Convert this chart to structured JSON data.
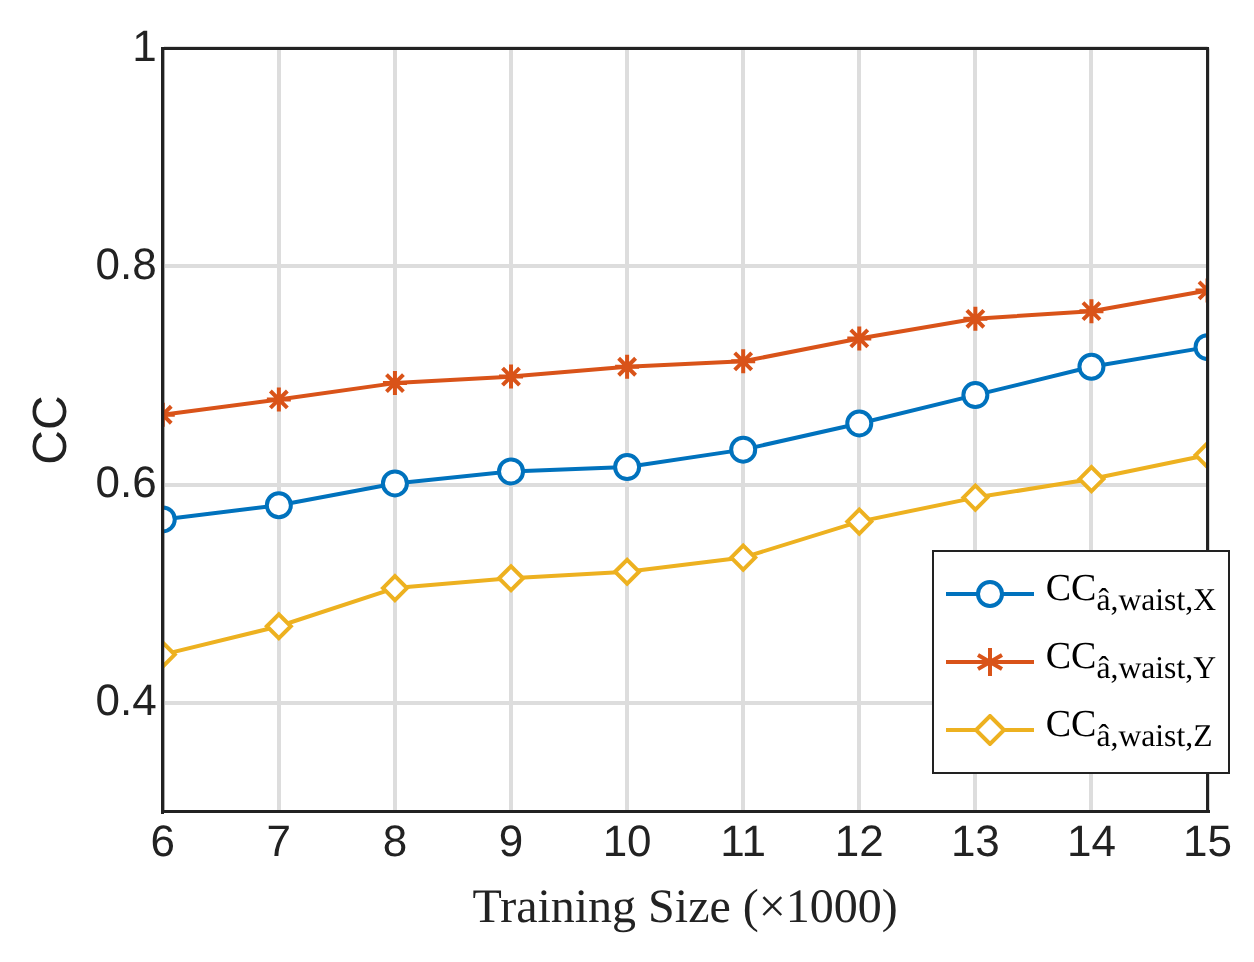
{
  "chart_data": {
    "type": "line",
    "xlabel": "Training Size (×1000)",
    "ylabel": "CC",
    "x": [
      6,
      7,
      8,
      9,
      10,
      11,
      12,
      13,
      14,
      15
    ],
    "series": [
      {
        "name": "CC$_{â,waist,X}$",
        "color": "#0072bd",
        "marker": "circle",
        "values": [
          0.568,
          0.581,
          0.601,
          0.612,
          0.616,
          0.632,
          0.656,
          0.682,
          0.708,
          0.726
        ]
      },
      {
        "name": "CC$_{â,waist,Y}$",
        "color": "#d95319",
        "marker": "cross",
        "values": [
          0.664,
          0.678,
          0.693,
          0.699,
          0.708,
          0.713,
          0.734,
          0.752,
          0.759,
          0.778
        ]
      },
      {
        "name": "CC$_{â,waist,Z}$",
        "color": "#edb120",
        "marker": "diamond",
        "values": [
          0.444,
          0.47,
          0.505,
          0.514,
          0.52,
          0.533,
          0.566,
          0.588,
          0.605,
          0.627
        ]
      }
    ],
    "xlim": [
      6,
      15
    ],
    "xticks": [
      6,
      7,
      8,
      9,
      10,
      11,
      12,
      13,
      14,
      15
    ],
    "ylim": [
      0.3,
      1
    ],
    "yticks": [
      0.4,
      0.6,
      0.8,
      {
        "value": 1,
        "label": "1"
      }
    ],
    "grid": true,
    "legend": "bottom right"
  }
}
